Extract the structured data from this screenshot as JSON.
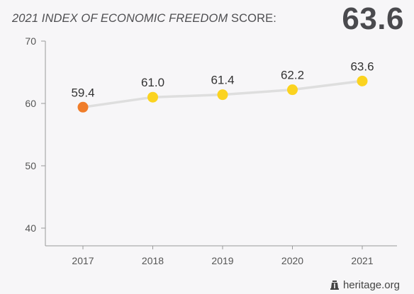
{
  "header": {
    "title_italic": "2021 INDEX OF ECONOMIC FREEDOM",
    "title_regular": " SCORE:",
    "score": "63.6"
  },
  "credit": {
    "text": "heritage.org",
    "icon": "liberty-bell-icon"
  },
  "chart_data": {
    "type": "line",
    "categories": [
      "2017",
      "2018",
      "2019",
      "2020",
      "2021"
    ],
    "values": [
      59.4,
      61.0,
      61.4,
      62.2,
      63.6
    ],
    "value_labels": [
      "59.4",
      "61.0",
      "61.4",
      "62.2",
      "63.6"
    ],
    "point_colors": [
      "#f07d2a",
      "#fbd320",
      "#fbd320",
      "#fbd320",
      "#fbd320"
    ],
    "line_color": "#dedede",
    "ylim": [
      38,
      70
    ],
    "yticks": [
      40,
      50,
      60,
      70
    ],
    "title": "2021 INDEX OF ECONOMIC FREEDOM SCORE:",
    "xlabel": "",
    "ylabel": "",
    "grid": false,
    "legend": "none"
  }
}
